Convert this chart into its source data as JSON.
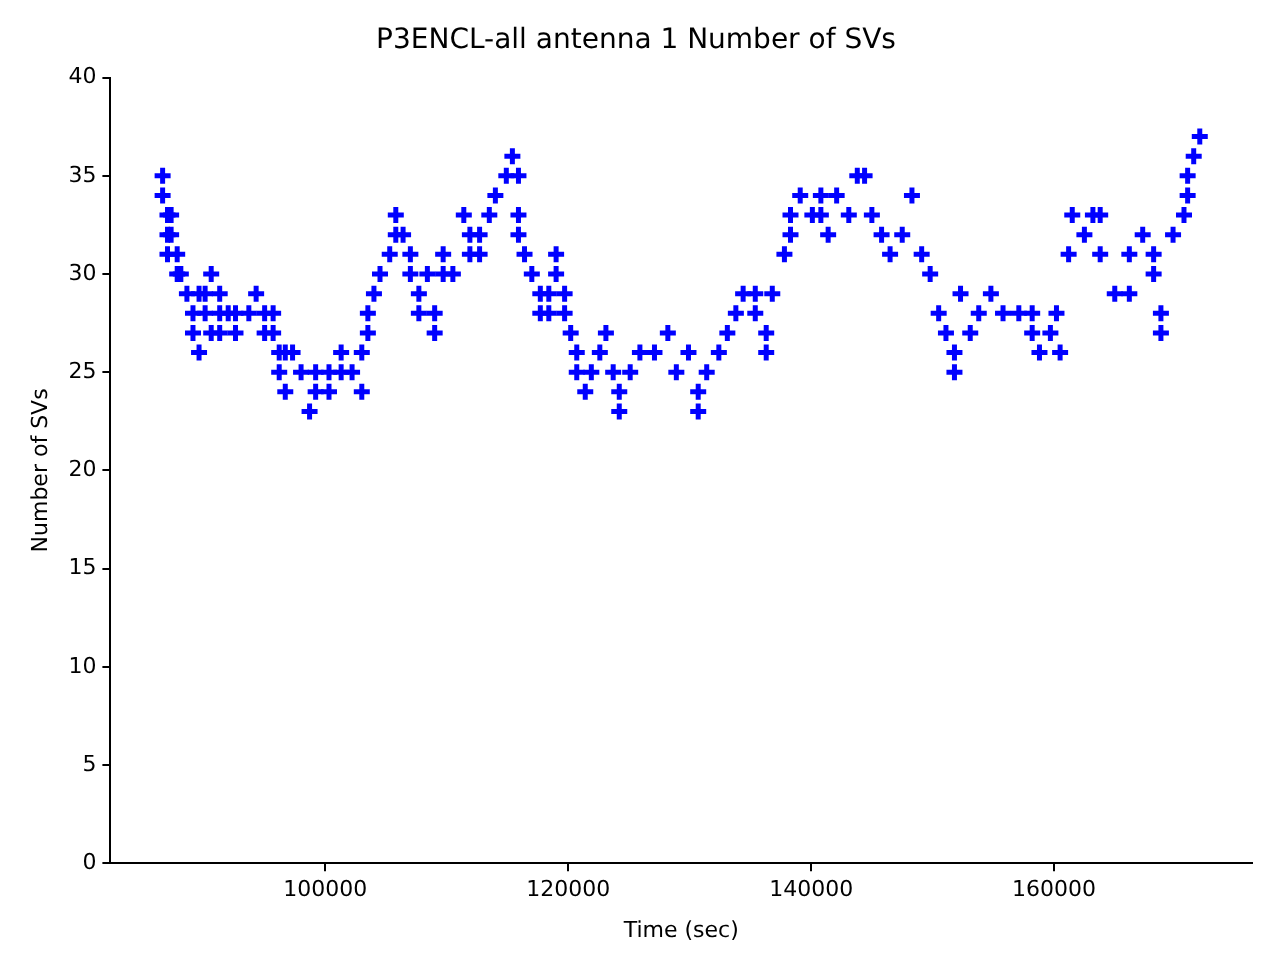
{
  "chart_data": {
    "type": "scatter",
    "title": "P3ENCL-all antenna 1 Number of SVs",
    "xlabel": "Time (sec)",
    "ylabel": "Number of SVs",
    "x": [
      86600,
      86600,
      87000,
      87000,
      87000,
      87300,
      87300,
      87800,
      87800,
      88100,
      88600,
      89100,
      89100,
      89600,
      89600,
      90100,
      90100,
      90600,
      90600,
      91300,
      91300,
      91300,
      92000,
      92600,
      92600,
      93700,
      94300,
      95000,
      95000,
      95700,
      95700,
      96200,
      96200,
      96700,
      96700,
      97300,
      98000,
      98700,
      99200,
      99200,
      100300,
      100300,
      101300,
      101300,
      102200,
      103000,
      103000,
      103500,
      103500,
      104000,
      104500,
      105300,
      105800,
      105800,
      106400,
      107000,
      107000,
      107700,
      107700,
      108400,
      109000,
      109000,
      109700,
      109700,
      110500,
      111400,
      111900,
      111900,
      112700,
      112700,
      113500,
      114000,
      114900,
      115400,
      115900,
      115900,
      115900,
      116400,
      117000,
      117700,
      117700,
      118400,
      118400,
      119000,
      119000,
      119700,
      119700,
      120200,
      120700,
      120700,
      121400,
      121900,
      122600,
      123100,
      123700,
      124200,
      124200,
      125100,
      125900,
      127100,
      128200,
      128900,
      129900,
      130700,
      130700,
      131400,
      132400,
      133100,
      133800,
      134400,
      135400,
      135400,
      136300,
      136300,
      136800,
      137800,
      138300,
      138300,
      139100,
      140100,
      140800,
      140800,
      141400,
      142100,
      143100,
      143800,
      144400,
      145000,
      145800,
      146500,
      147500,
      148300,
      149100,
      149800,
      150500,
      151100,
      151800,
      151800,
      152300,
      153100,
      153800,
      154800,
      155800,
      157100,
      158200,
      158200,
      158800,
      159700,
      160200,
      160500,
      161200,
      161500,
      162500,
      163200,
      163800,
      163800,
      165000,
      166200,
      166200,
      167300,
      168200,
      168200,
      168800,
      168800,
      169800,
      170700,
      171000,
      171000,
      171500,
      172000
    ],
    "values": [
      35,
      34,
      33,
      32,
      31,
      33,
      32,
      31,
      30,
      30,
      29,
      28,
      27,
      29,
      26,
      29,
      28,
      30,
      27,
      29,
      28,
      27,
      28,
      28,
      27,
      28,
      29,
      28,
      27,
      28,
      27,
      26,
      25,
      26,
      24,
      26,
      25,
      23,
      24,
      25,
      24,
      25,
      25,
      26,
      25,
      24,
      26,
      28,
      27,
      29,
      30,
      31,
      33,
      32,
      32,
      31,
      30,
      29,
      28,
      30,
      27,
      28,
      31,
      30,
      30,
      33,
      32,
      31,
      31,
      32,
      33,
      34,
      35,
      36,
      35,
      33,
      32,
      31,
      30,
      29,
      28,
      29,
      28,
      31,
      30,
      29,
      28,
      27,
      26,
      25,
      24,
      25,
      26,
      27,
      25,
      23,
      24,
      25,
      26,
      26,
      27,
      25,
      26,
      23,
      24,
      25,
      26,
      27,
      28,
      29,
      29,
      28,
      27,
      26,
      29,
      31,
      32,
      33,
      34,
      33,
      34,
      33,
      32,
      34,
      33,
      35,
      35,
      33,
      32,
      31,
      32,
      34,
      31,
      30,
      28,
      27,
      25,
      26,
      29,
      27,
      28,
      29,
      28,
      28,
      27,
      28,
      26,
      27,
      28,
      26,
      31,
      33,
      32,
      33,
      33,
      31,
      29,
      31,
      29,
      32,
      31,
      30,
      28,
      27,
      32,
      33,
      35,
      34,
      36,
      37
    ],
    "color": "#0000ff",
    "marker": "cross",
    "grid": false,
    "xlim": [
      82300,
      176300
    ],
    "xticks": [
      100000,
      120000,
      140000,
      160000
    ],
    "ylim": [
      0,
      40
    ],
    "yticks": [
      0,
      5,
      10,
      15,
      20,
      25,
      30,
      35,
      40
    ]
  }
}
